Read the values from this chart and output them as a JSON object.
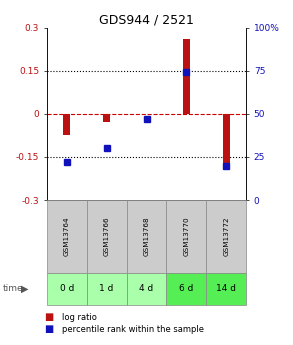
{
  "title": "GDS944 / 2521",
  "categories": [
    "GSM13764",
    "GSM13766",
    "GSM13768",
    "GSM13770",
    "GSM13772"
  ],
  "time_labels": [
    "0 d",
    "1 d",
    "4 d",
    "6 d",
    "14 d"
  ],
  "log_ratio": [
    -0.075,
    -0.03,
    0.0,
    0.26,
    -0.195
  ],
  "percentile_rank": [
    22,
    30,
    47,
    74,
    20
  ],
  "ylim_left": [
    -0.3,
    0.3
  ],
  "ylim_right": [
    0,
    100
  ],
  "yticks_left": [
    -0.3,
    -0.15,
    0,
    0.15,
    0.3
  ],
  "yticks_right": [
    0,
    25,
    50,
    75,
    100
  ],
  "bar_color_red": "#bb1111",
  "bar_color_blue": "#1111bb",
  "dashed_line_color": "#cc0000",
  "header_bg": "#cccccc",
  "time_bg_light": "#aaffaa",
  "time_bg_dark": "#55ee55",
  "title_fontsize": 9,
  "tick_fontsize": 6.5,
  "bar_width": 0.18,
  "time_colors": [
    "#aaffaa",
    "#aaffaa",
    "#aaffaa",
    "#55ee55",
    "#55ee55"
  ]
}
